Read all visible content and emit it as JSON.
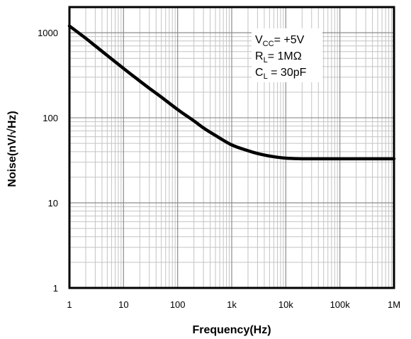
{
  "chart_data": {
    "type": "line",
    "xlabel": "Frequency(Hz)",
    "ylabel": "Noise(nV/√Hz)",
    "x_scale": "log",
    "y_scale": "log",
    "xlim": [
      1,
      1000000
    ],
    "ylim": [
      1,
      2000
    ],
    "x_tick_values": [
      1,
      10,
      100,
      1000,
      10000,
      100000,
      1000000
    ],
    "x_tick_labels": [
      "1",
      "10",
      "100",
      "1k",
      "10k",
      "100k",
      "1M"
    ],
    "y_tick_values": [
      1,
      10,
      100,
      1000
    ],
    "y_tick_labels": [
      "1",
      "10",
      "100",
      "1000"
    ],
    "grid": true,
    "line_color": "#000000",
    "annotations": [
      {
        "main": "V",
        "sub": "CC",
        "rest": "= +5V"
      },
      {
        "main": "R",
        "sub": "L",
        "rest": "= 1MΩ"
      },
      {
        "main": "C",
        "sub": "L",
        "rest": " = 30pF"
      }
    ],
    "series": [
      {
        "x": [
          1,
          2,
          3,
          5,
          10,
          20,
          30,
          50,
          100,
          200,
          300,
          500,
          1000,
          2000,
          3000,
          5000,
          10000,
          20000,
          30000,
          50000,
          100000,
          200000,
          500000,
          1000000
        ],
        "values": [
          1200,
          860,
          700,
          540,
          380,
          270,
          222,
          175,
          125,
          92,
          76,
          62,
          48,
          41,
          38,
          35.5,
          33.5,
          33,
          33,
          33,
          33,
          33,
          33,
          33
        ]
      }
    ]
  }
}
